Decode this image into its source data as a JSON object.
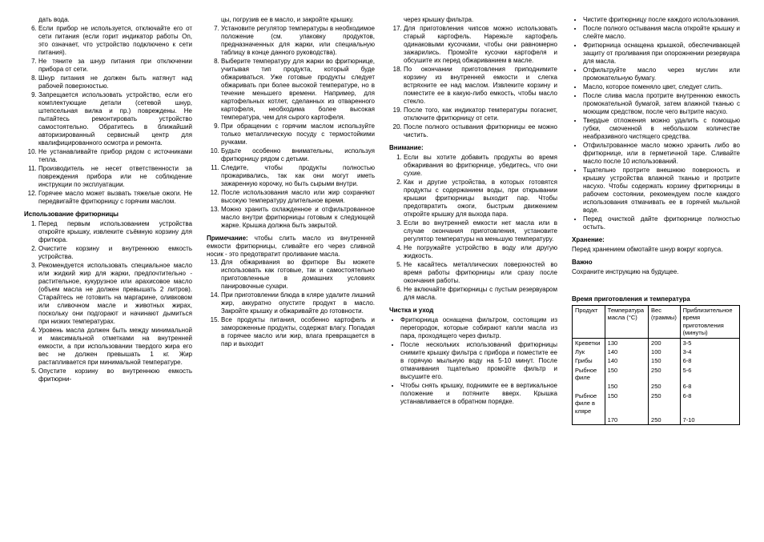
{
  "col1": {
    "list1_start": 5,
    "list1": [
      "дать вода.",
      "Если прибор не используется, отключайте его от сети питания (если горит индикатор работы On, это означает, что устройство подключено к сети питания).",
      "Не тяните за шнур питания при отключении прибора от сети.",
      "Шнур питания не должен быть натянут над рабочей поверхностью.",
      "Запрещается использовать устройство, если его комплектующие детали (сетевой шнур, штепсельная вилка и пр.) повреждены. Не пытайтесь ремонтировать устройство самостоятельно. Обратитесь в ближайший авторизированный сервисный центр для квалифицированного осмотра и ремонта.",
      "Не устанавливайте прибор рядом с источниками тепла.",
      "Производитель не несет ответственности за повреждения прибора или не соблюдение инструкции по эксплуатации.",
      "Горячее масло может вызвать тяжелые ожоги. Не передвигайте фритюрницу с горячим маслом."
    ],
    "head2": "Использование фритюрницы",
    "list2": [
      "Перед первым использованием устройства откройте крышку, извлеките съёмную корзину для фритюра.",
      "Очистите корзину и внутреннюю емкость устройства.",
      "Рекомендуется использовать специальное масло или жидкий жир для жарки, предпочтительно - растительное, кукурузное или арахисовое масло (объем масла не должен превышать 2 литров). Старайтесь не готовить на маргарине, оливковом или сливочном масле и животных жирах, поскольку они подгорают и начинают дымиться при низких температурах.",
      "Уровень масла должен быть между минимальной и максимальной отметками на внутренней емкости, а при использовании твердого жира его вес не должен превышать 1 кг. Жир растапливается при минимальной температуре.",
      "Опустите корзину во внутреннюю емкость фритюрни-"
    ]
  },
  "col2": {
    "list1_start": 6,
    "list1_pre": "цы, погрузив ее в масло, и закройте крышку.",
    "list1": [
      "Установите регулятор температуры в необходимое положение (см. упаковку продуктов, предназначенных для жарки, или специальную таблицу в конце данного руководства).",
      "Выберите температуру для жарки во фритюрнице, учитывая тип продукта, который буде обжариваться. Уже готовые продукты следует обжаривать при более высокой температуре, но в течение меньшего времени. Например, для картофельных котлет, сделанных из отваренного картофеля, необходима более высокая температура, чем для сырого картофеля.",
      "При обращении с горячим маслом используйте только металлическую посуду с термостойкими ручками.",
      "Будьте особенно внимательны, используя фритюрницу рядом с детьми.",
      "Следите, чтобы продукты полностью прожаривались, так как они могут иметь зажаренную корочку, но быть сырыми внутри.",
      "После использования масло или жир сохраняют высокую температуру длительное время.",
      "Можно хранить охлажденное и отфильтрованное масло внутри фритюрницы готовым к следующей жарке. Крышка должна быть закрытой."
    ],
    "note_label": "Примечание:",
    "note_text": " чтобы слить масло из внутренней емкости фритюрницы, сливайте его через сливной носик - это предотвратит проливание масла.",
    "list2_start": 13,
    "list2": [
      "Для обжаривания во фритюре Вы можете использовать как готовые, так и самостоятельно приготовленные в домашних условиях панировочные сухари.",
      "При приготовлении блюда в кляре удалите лишний жир, аккуратно опустите продукт в масло. Закройте крышку и обжаривайте до готовности.",
      "Все продукты питания, особенно картофель и замороженные продукты, содержат влагу. Попадая в горячее масло или жир, влага превращается в пар и выходит"
    ]
  },
  "col3": {
    "list1_start": 16,
    "list1_pre": "через крышку фильтра.",
    "list1": [
      "Для приготовления чипсов можно использовать старый картофель. Нарежьте картофель одинаковыми кусочками, чтобы они равномерно зажарились. Промойте кусочки картофеля и обсушите их перед обжариванием в масле.",
      "По окончании приготовления приподнимите корзину из внутренней емкости и слегка встряхните ее над маслом. Извлеките корзину и поместите ее в какую-либо емкость, чтобы масло стекло.",
      "После того, как индикатор температуры погаснет, отключите фритюрницу от сети.",
      "После полного остывания фритюрницы ее можно чистить."
    ],
    "head2": "Внимание:",
    "list2": [
      "Если вы хотите добавить продукты во время обжаривания во фритюрнице, убедитесь, что они сухие.",
      "Как и другие устройства, в которых готовятся продукты с содержанием воды, при открывании крышки фритюрницы выходит пар. Чтобы предотвратить ожоги, быстрым движением откройте крышку для выхода пара.",
      "Если во внутренней емкости нет масла или в случае окончания приготовления, установите регулятор температуры на меньшую температуру.",
      "Не погружайте устройство в воду или другую жидкость.",
      "Не касайтесь металлических поверхностей во время работы фритюрницы или сразу после окончания работы.",
      "Не включайте фритюрницы с пустым резервуаром для масла."
    ],
    "head3": "Чистка и уход",
    "list3": [
      "Фритюрница оснащена фильтром, состоящим из перегородок, которые собирают капли масла из пара, проходящего через фильтр.",
      "После нескольких использований фритюрницы снимите крышку фильтра с прибора и поместите ее в горячую мыльную воду на 5-10 минут. После отмачивания тщательно промойте фильтр и высушите его.",
      "Чтобы снять крышку, поднимите ее в вертикальное положение и потяните вверх. Крышка устанавливается в обратном порядке."
    ]
  },
  "col4": {
    "list1": [
      "Чистите фритюрницу после каждого использования.",
      "После полного остывания масла откройте крышку и слейте масло.",
      "Фритюрница оснащена крышкой, обеспечивающей защиту от проливания при опорожнении резервуара для масла.",
      "Отфильтруйте масло через муслин или промокательную бумагу.",
      "Масло, которое поменяло цвет, следует слить.",
      "После слива масла протрите внутреннюю емкость промокательной бумагой, затем влажной тканью с моющим средством, после чего вытрите насухо.",
      "Твердые отложения можно удалить с помощью губки, смоченной в небольшом количестве неабразивного чистящего средства.",
      "Отфильтрованное масло можно хранить либо во фритюрнице, или в герметичной таре. Сливайте масло после 10 использований.",
      "Тщательно протрите внешнюю поверхность и крышку устройства влажной тканью и протрите насухо. Чтобы содержать корзину фритюрницы в рабочем состоянии, рекомендуем после каждого использования отмачивать ее в горячей мыльной воде.",
      "Перед очисткой дайте фритюрнице полностью остыть."
    ],
    "head2": "Хранение:",
    "text2": "Перед хранением обмотайте шнур вокруг корпуса.",
    "head3": "Важно",
    "text3": "Сохраните инструкцию на будущее.",
    "head4": "Время приготовления и температура",
    "table": {
      "columns": [
        "Продукт",
        "Температура масла (°C)",
        "Вес (граммы)",
        "Приблизительное время приготовления (минуты)"
      ],
      "rows": [
        [
          "Креветки",
          "130",
          "200",
          "3-5"
        ],
        [
          "Лук",
          "140",
          "100",
          "3-4"
        ],
        [
          "Грибы",
          "140",
          "150",
          "6-8"
        ],
        [
          "Рыбное филе",
          "150",
          "250",
          "5-6"
        ],
        [
          "",
          "150",
          "250",
          "6-8"
        ],
        [
          "Рыбное филе в кляре",
          "150",
          "250",
          "6-8"
        ],
        [
          "",
          "170",
          "250",
          "7-10"
        ]
      ]
    }
  }
}
